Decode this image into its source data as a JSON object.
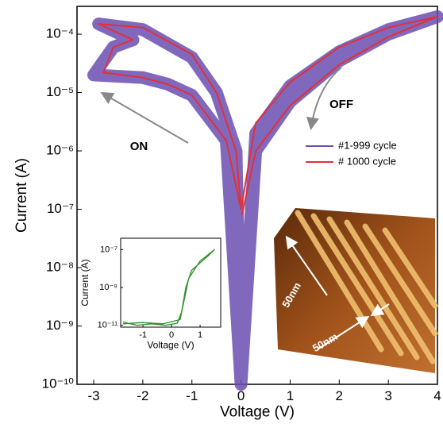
{
  "chart_data": [
    {
      "type": "line",
      "x_label": "Voltage (V)",
      "y_label": "Current (A)",
      "log_y": true,
      "xlim": [
        -3.34,
        4.0
      ],
      "ylim": [
        1e-10,
        0.0003
      ],
      "xticks": [
        -3,
        -2,
        -1,
        0,
        1,
        2,
        3,
        4
      ],
      "yticks": [
        {
          "value": 1e-10,
          "label": "10⁻¹⁰"
        },
        {
          "value": 1e-09,
          "label": "10⁻⁹"
        },
        {
          "value": 1e-08,
          "label": "10⁻⁸"
        },
        {
          "value": 1e-07,
          "label": "10⁻⁷"
        },
        {
          "value": 1e-06,
          "label": "10⁻⁶"
        },
        {
          "value": 1e-05,
          "label": "10⁻⁵"
        },
        {
          "value": 0.0001,
          "label": "10⁻⁴"
        }
      ],
      "annotations": [
        "ON",
        "OFF",
        "50nm",
        "50nm"
      ],
      "series": [
        {
          "name": "#1-999 cycle",
          "color": "#6a4fb0",
          "x": [
            0,
            0.3,
            1,
            2,
            3,
            4,
            3,
            2,
            1,
            0.3,
            0,
            -0.3,
            -1,
            -1.5,
            -2,
            -3,
            -2.6,
            -2.2,
            -2.9,
            -2,
            -1,
            -0.5,
            -0.1,
            0
          ],
          "values": [
            1e-10,
            1e-06,
            7e-06,
            3.5e-05,
            0.0001,
            0.0002,
            0.00012,
            5e-05,
            1.3e-05,
            2e-06,
            1e-10,
            1.5e-06,
            9e-06,
            1.4e-05,
            1.8e-05,
            2e-05,
            6e-05,
            8e-05,
            0.00015,
            0.00012,
            4e-05,
            1e-05,
            1e-06,
            1e-10
          ]
        },
        {
          "name": "# 1000 cycle",
          "color": "#e0303a",
          "x": [
            0.02,
            0.3,
            1,
            2,
            3,
            4,
            3,
            2,
            1,
            0.3,
            0,
            -0.3,
            -1,
            -1.5,
            -2,
            -2.8,
            -2.6,
            -2.2,
            -2.9,
            -2,
            -1,
            -0.5,
            -0.1,
            0
          ],
          "values": [
            8e-08,
            1e-06,
            6e-06,
            3e-05,
            9e-05,
            0.0002,
            0.00013,
            6e-05,
            1.5e-05,
            3e-06,
            1e-07,
            1.5e-06,
            9e-06,
            1.4e-05,
            1.8e-05,
            2.2e-05,
            6e-05,
            8e-05,
            0.00015,
            0.00013,
            4.5e-05,
            1e-05,
            1e-06,
            1e-07
          ]
        }
      ]
    },
    {
      "type": "line",
      "x_label": "Voltage (V)",
      "y_label": "Current (A)",
      "log_y": true,
      "xlim": [
        -1.78,
        1.72
      ],
      "ylim": [
        8e-12,
        4e-07
      ],
      "xticks": [
        -1,
        0,
        1
      ],
      "yticks": [
        {
          "value": 1e-11,
          "label": "10⁻¹¹"
        },
        {
          "value": 1e-09,
          "label": "10⁻⁹"
        },
        {
          "value": 1e-07,
          "label": "10⁻⁷"
        }
      ],
      "series": [
        {
          "color": "#2f8f2f",
          "x": [
            -1.7,
            -1.2,
            -0.7,
            -0.2,
            0.2,
            0.35,
            0.5,
            0.7,
            1.0,
            1.3,
            1.5,
            1.0,
            0.6,
            0.3,
            -0.3,
            -1.0,
            -1.7
          ],
          "values": [
            1.5e-11,
            1e-11,
            1.2e-11,
            1e-11,
            1.3e-11,
            5e-11,
            1e-09,
            8e-09,
            2e-08,
            5e-08,
            1e-07,
            2.5e-08,
            3e-09,
            2e-11,
            1.2e-11,
            1.4e-11,
            1.2e-11
          ]
        }
      ]
    }
  ]
}
